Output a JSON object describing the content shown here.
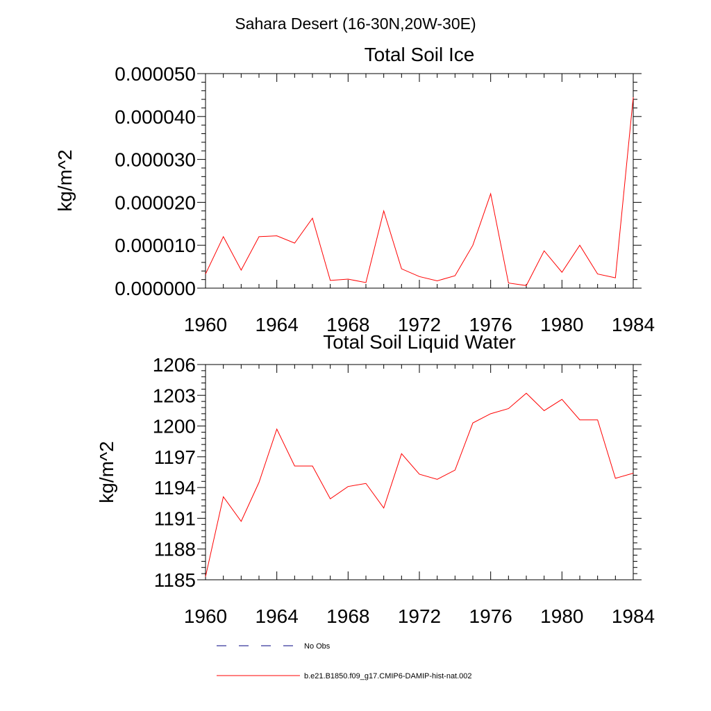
{
  "suptitle": "Sahara Desert (16-30N,20W-30E)",
  "colors": {
    "model": "#ff0000",
    "obs": "#000080",
    "axis": "#000000"
  },
  "legend": [
    {
      "label": "No Obs",
      "style": "dashed",
      "color": "#000080"
    },
    {
      "label": "b.e21.B1850.f09_g17.CMIP6-DAMIP-hist-nat.002",
      "style": "solid",
      "color": "#ff0000"
    }
  ],
  "chart_data": [
    {
      "type": "line",
      "title": "Total Soil Ice",
      "ylabel": "kg/m^2",
      "xlim": [
        1960,
        1984
      ],
      "ylim": [
        0,
        5e-05
      ],
      "xticks": [
        1960,
        1964,
        1968,
        1972,
        1976,
        1980,
        1984
      ],
      "xtick_labels": [
        "1960",
        "1964",
        "1968",
        "1972",
        "1976",
        "1980",
        "1984"
      ],
      "yticks": [
        0,
        1e-05,
        2e-05,
        3e-05,
        4e-05,
        5e-05
      ],
      "ytick_labels": [
        "0.000000",
        "0.000010",
        "0.000020",
        "0.000030",
        "0.000040",
        "0.000050"
      ],
      "x": [
        1960,
        1961,
        1962,
        1963,
        1964,
        1965,
        1966,
        1967,
        1968,
        1969,
        1970,
        1971,
        1972,
        1973,
        1974,
        1975,
        1976,
        1977,
        1978,
        1979,
        1980,
        1981,
        1982,
        1983,
        1984
      ],
      "values": [
        3.3e-06,
        1.2e-05,
        4.2e-06,
        1.2e-05,
        1.22e-05,
        1.05e-05,
        1.63e-05,
        1.8e-06,
        2.1e-06,
        1.3e-06,
        1.8e-05,
        4.5e-06,
        2.7e-06,
        1.7e-06,
        2.9e-06,
        1e-05,
        2.2e-05,
        1.2e-06,
        6e-07,
        8.7e-06,
        3.7e-06,
        1e-05,
        3.3e-06,
        2.4e-06,
        4.45e-05
      ],
      "series_name": "b.e21.B1850.f09_g17.CMIP6-DAMIP-hist-nat.002"
    },
    {
      "type": "line",
      "title": "Total Soil Liquid Water",
      "ylabel": "kg/m^2",
      "xlim": [
        1960,
        1984
      ],
      "ylim": [
        1185,
        1206
      ],
      "xticks": [
        1960,
        1964,
        1968,
        1972,
        1976,
        1980,
        1984
      ],
      "xtick_labels": [
        "1960",
        "1964",
        "1968",
        "1972",
        "1976",
        "1980",
        "1984"
      ],
      "yticks": [
        1185,
        1188,
        1191,
        1194,
        1197,
        1200,
        1203,
        1206
      ],
      "ytick_labels": [
        "1185",
        "1188",
        "1191",
        "1194",
        "1197",
        "1200",
        "1203",
        "1206"
      ],
      "x": [
        1960,
        1961,
        1962,
        1963,
        1964,
        1965,
        1966,
        1967,
        1968,
        1969,
        1970,
        1971,
        1972,
        1973,
        1974,
        1975,
        1976,
        1977,
        1978,
        1979,
        1980,
        1981,
        1982,
        1983,
        1984
      ],
      "values": [
        1185.3,
        1193.1,
        1190.7,
        1194.5,
        1199.7,
        1196.1,
        1196.1,
        1192.9,
        1194.1,
        1194.4,
        1192.0,
        1197.3,
        1195.3,
        1194.8,
        1195.7,
        1200.3,
        1201.2,
        1201.7,
        1203.2,
        1201.5,
        1202.6,
        1200.6,
        1200.6,
        1194.9,
        1195.4
      ],
      "series_name": "b.e21.B1850.f09_g17.CMIP6-DAMIP-hist-nat.002"
    }
  ]
}
